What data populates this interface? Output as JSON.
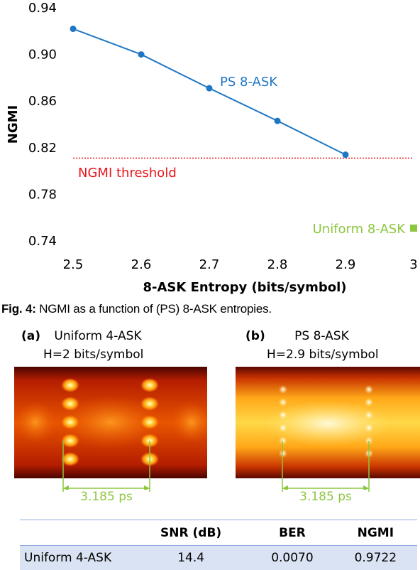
{
  "chart_data": {
    "type": "line",
    "xlabel": "8-ASK Entropy (bits/symbol)",
    "ylabel": "NGMI",
    "xlim": [
      2.5,
      3
    ],
    "ylim": [
      0.74,
      0.94
    ],
    "x_ticks": [
      "2.5",
      "2.6",
      "2.7",
      "2.8",
      "2.9",
      "3"
    ],
    "y_ticks": [
      "0.74",
      "0.78",
      "0.82",
      "0.86",
      "0.90",
      "0.94"
    ],
    "grid": false,
    "series": [
      {
        "name": "PS 8-ASK",
        "color": "#1f77c4",
        "x": [
          2.5,
          2.6,
          2.7,
          2.8,
          2.9
        ],
        "y": [
          0.922,
          0.9,
          0.871,
          0.843,
          0.814
        ]
      },
      {
        "name": "Uniform 8-ASK",
        "color": "#8dc63f",
        "x": [
          3.0
        ],
        "y": [
          0.751
        ]
      }
    ],
    "threshold": {
      "label": "NGMI threshold",
      "value": 0.811,
      "color": "#e8141a"
    }
  },
  "caption": {
    "label": "Fig. 4:",
    "text": "NGMI as a function of (PS) 8-ASK entropies."
  },
  "panels": [
    {
      "tag": "(a)",
      "title": "Uniform 4-ASK",
      "entropy": "H=2 bits/symbol",
      "spacing": "3.185 ps"
    },
    {
      "tag": "(b)",
      "title": "PS 8-ASK",
      "entropy": "H=2.9 bits/symbol",
      "spacing": "3.185 ps"
    }
  ],
  "table": {
    "headers": [
      "",
      "SNR (dB)",
      "BER",
      "NGMI"
    ],
    "rows": [
      [
        "Uniform 4-ASK",
        "14.4",
        "0.0070",
        "0.9722"
      ]
    ]
  },
  "colors": {
    "spacing_marker": "#8dc63f",
    "table_rule": "#8eaadb",
    "table_row": "#dae3f3"
  }
}
